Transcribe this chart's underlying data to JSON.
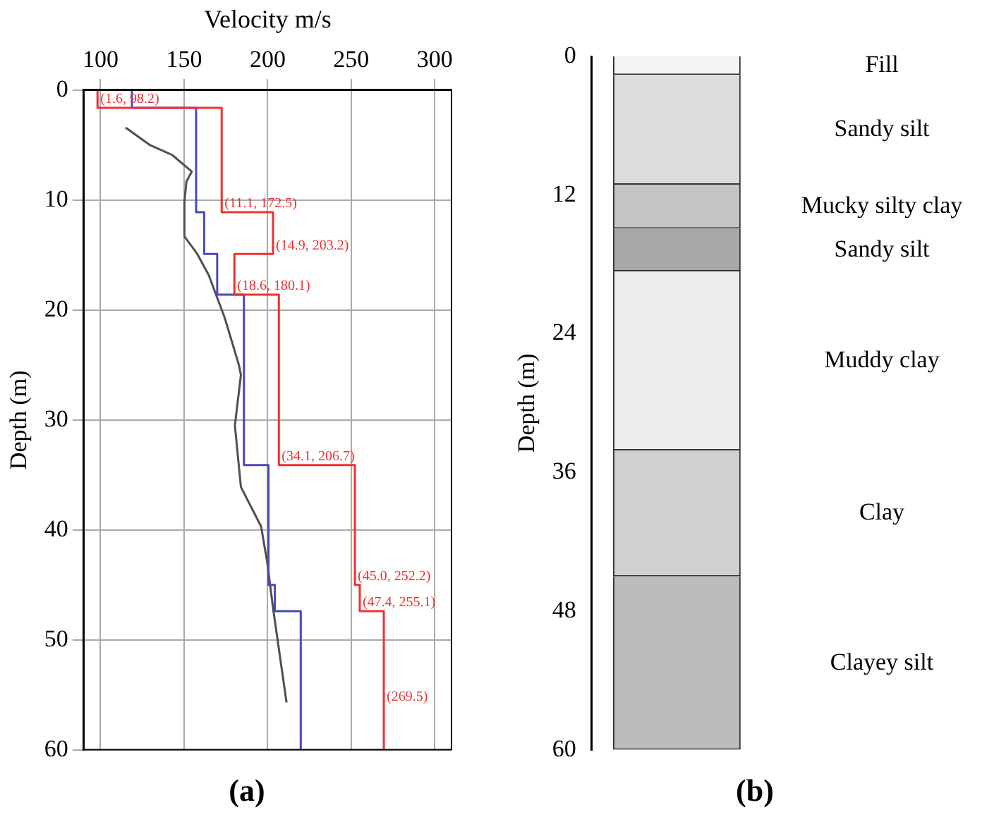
{
  "chart_data": [
    {
      "type": "line",
      "xlabel": "Velocity m/s",
      "ylabel": "Depth (m)",
      "xlim": [
        90,
        310
      ],
      "xticks": [
        100,
        150,
        200,
        250,
        300
      ],
      "ylim": [
        60,
        0
      ],
      "yticks": [
        0,
        10,
        20,
        30,
        40,
        50,
        60
      ],
      "grid": true,
      "legend": false,
      "marker": "none",
      "line_style": "solid",
      "series": [
        {
          "color": "#f03030",
          "x": [
            98.2,
            98.2,
            172.5,
            172.5,
            203.2,
            203.2,
            180.1,
            180.1,
            206.7,
            206.7,
            252.2,
            252.2,
            255.1,
            255.1,
            269.5,
            269.5
          ],
          "values": [
            0,
            1.6,
            1.6,
            11.1,
            11.1,
            14.9,
            14.9,
            18.6,
            18.6,
            34.1,
            34.1,
            45.0,
            45.0,
            47.4,
            47.4,
            60
          ]
        },
        {
          "color": "#4848c0",
          "x": [
            118.8,
            118.8,
            157.2,
            157.2,
            162,
            162,
            169.8,
            169.8,
            185.8,
            185.8,
            200.5,
            200.5,
            204.3,
            204.3,
            219.8,
            219.8
          ],
          "values": [
            0,
            1.6,
            1.6,
            11.1,
            11.1,
            14.9,
            14.9,
            18.6,
            18.6,
            34.1,
            34.1,
            45.0,
            45.0,
            47.4,
            47.4,
            60
          ]
        },
        {
          "color": "#505050",
          "x": [
            115.0,
            129.7,
            143.0,
            154.6,
            151.4,
            150.2,
            150.2,
            157.5,
            164.7,
            174.3,
            182.8,
            184.0,
            180.4,
            184.0,
            196.1,
            199.7,
            203.3,
            211.3
          ],
          "values": [
            3.4,
            5.0,
            5.9,
            7.4,
            8.3,
            10.2,
            13.3,
            14.8,
            16.8,
            20.7,
            25.0,
            25.9,
            30.5,
            36.1,
            39.7,
            42.9,
            47.2,
            55.7
          ]
        }
      ],
      "annotations": [
        {
          "text": "(1.6, 98.2)",
          "x": 98.2,
          "y": 1.6
        },
        {
          "text": "(11.1, 172.5)",
          "x": 172.5,
          "y": 11.1
        },
        {
          "text": "(14.9, 203.2)",
          "x": 203.2,
          "y": 14.9
        },
        {
          "text": "(18.6, 180.1)",
          "x": 180.1,
          "y": 18.6
        },
        {
          "text": "(34.1, 206.7)",
          "x": 206.7,
          "y": 34.1
        },
        {
          "text": "(45.0, 252.2)",
          "x": 252.2,
          "y": 45.0
        },
        {
          "text": "(47.4, 255.1)",
          "x": 255.1,
          "y": 47.4
        },
        {
          "text": "(269.5)",
          "x": 269.5,
          "y": 56
        },
        "(a)"
      ]
    },
    {
      "type": "bar",
      "stacked": true,
      "categories": [
        null
      ],
      "ylabel": "Depth (m)",
      "ylim": [
        60,
        0
      ],
      "yticks": [
        0,
        12,
        24,
        36,
        48,
        60
      ],
      "grid": false,
      "legend": false,
      "tick_labels": "y",
      "series": [
        {
          "name": "Fill",
          "color": "#f4f4f4",
          "values": [
            1.6
          ]
        },
        {
          "name": "Sandy silt",
          "color": "#dcdcdc",
          "values": [
            9.5
          ]
        },
        {
          "name": "Mucky silty clay",
          "color": "#c4c4c4",
          "values": [
            3.8
          ]
        },
        {
          "name": "Sandy silt",
          "color": "#a8a8a8",
          "values": [
            3.7
          ]
        },
        {
          "name": "Muddy clay",
          "color": "#ececec",
          "values": [
            15.5
          ]
        },
        {
          "name": "Clay",
          "color": "#d0d0d0",
          "values": [
            10.9
          ]
        },
        {
          "name": "Clayey silt",
          "color": "#bcbcbc",
          "values": [
            15.0
          ]
        }
      ],
      "annotations": [
        "(b)"
      ]
    }
  ]
}
